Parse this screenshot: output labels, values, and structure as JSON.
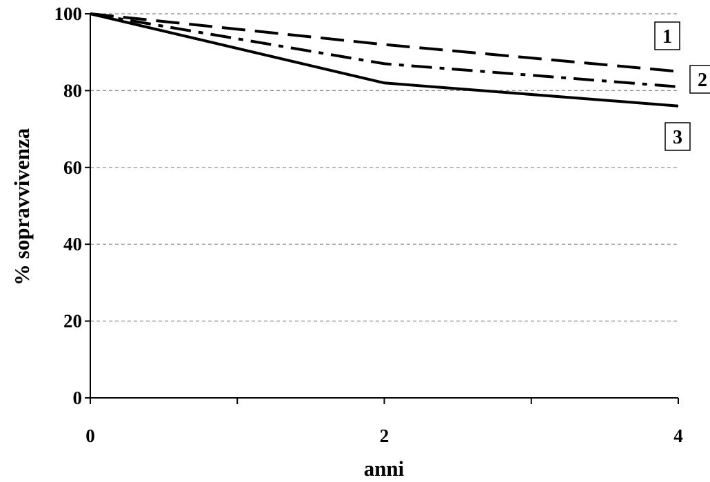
{
  "chart_data": {
    "type": "line",
    "title": "",
    "xlabel": "anni",
    "ylabel": "% sopravvivenza",
    "xlim": [
      0,
      4
    ],
    "ylim": [
      0,
      100
    ],
    "x_ticks": [
      0,
      1,
      2,
      3,
      4
    ],
    "x_tick_labels": [
      "0",
      "2",
      "4"
    ],
    "x_tick_label_values": [
      0,
      2,
      4
    ],
    "y_ticks": [
      0,
      20,
      40,
      60,
      80,
      100
    ],
    "y_tick_labels": [
      "0",
      "20",
      "40",
      "60",
      "80",
      "100"
    ],
    "grid": "horizontal dashed",
    "series": [
      {
        "label": "1",
        "style": "dashed",
        "x": [
          0,
          2,
          4
        ],
        "y": [
          100,
          92,
          85
        ]
      },
      {
        "label": "2",
        "style": "dash-dot",
        "x": [
          0,
          2,
          4
        ],
        "y": [
          100,
          87,
          81
        ]
      },
      {
        "label": "3",
        "style": "solid",
        "x": [
          0,
          2,
          4
        ],
        "y": [
          100,
          82,
          76
        ]
      }
    ],
    "colors": {
      "line": "#000000",
      "grid": "#888888",
      "background": "#ffffff"
    }
  }
}
